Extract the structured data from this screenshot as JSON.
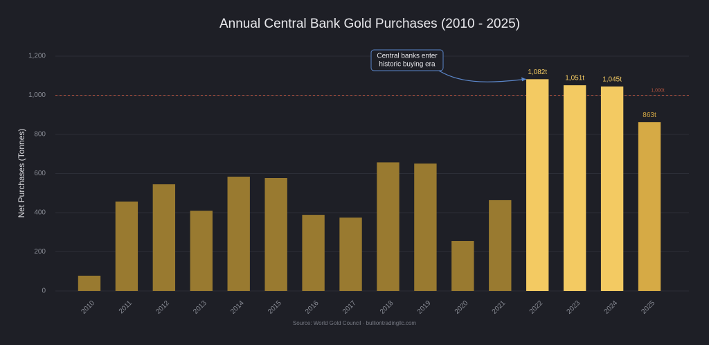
{
  "chart_data": {
    "type": "bar",
    "title": "Annual Central Bank Gold Purchases (2010 - 2025)",
    "y_label": "Net Purchases (Tonnes)",
    "categories": [
      "2010",
      "2011",
      "2012",
      "2013",
      "2014",
      "2015",
      "2016",
      "2017",
      "2018",
      "2019",
      "2020",
      "2021",
      "2022",
      "2023",
      "2024",
      "2025"
    ],
    "values": [
      78,
      457,
      545,
      410,
      584,
      577,
      389,
      375,
      657,
      651,
      255,
      464,
      1082,
      1051,
      1045,
      863
    ],
    "value_labels": [
      null,
      null,
      null,
      null,
      null,
      null,
      null,
      null,
      null,
      null,
      null,
      null,
      "1,082t",
      "1,051t",
      "1,045t",
      "863t"
    ],
    "colors": [
      "#997a30",
      "#997a30",
      "#997a30",
      "#997a30",
      "#997a30",
      "#997a30",
      "#997a30",
      "#997a30",
      "#997a30",
      "#997a30",
      "#997a30",
      "#997a30",
      "#f3ca62",
      "#f3ca62",
      "#f3ca62",
      "#d6aa45"
    ],
    "ylim": [
      0,
      1200
    ],
    "yticks": [
      0,
      200,
      400,
      600,
      800,
      {
        "value": 1000,
        "label": "1,000"
      },
      {
        "value": 1200,
        "label": "1,200"
      }
    ],
    "grid": true,
    "reference_line": {
      "value": 1000,
      "label": "1,000t",
      "color": "#b5533f"
    },
    "annotation": {
      "lines": [
        "Central banks enter",
        "historic buying era"
      ],
      "category_index": 12
    },
    "source": "Source: World Gold Council  ·  bulliontradingllc.com"
  }
}
